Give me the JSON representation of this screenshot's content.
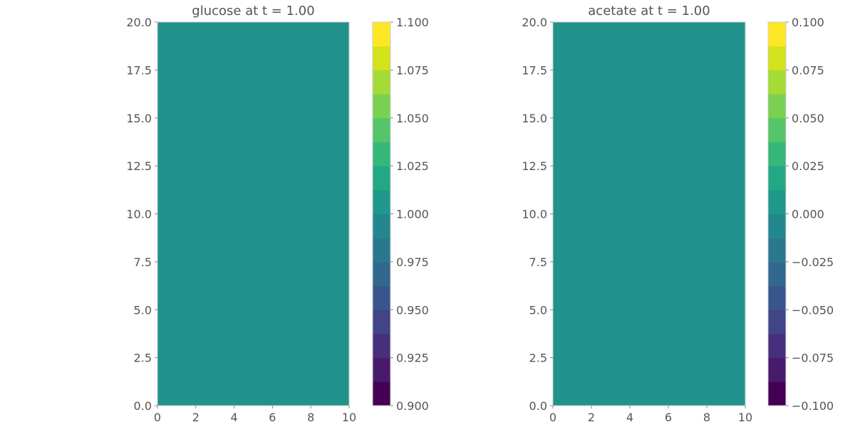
{
  "chart_data": [
    {
      "type": "heatmap",
      "title": "glucose at t = 1.00",
      "xlim": [
        0,
        10
      ],
      "ylim": [
        0,
        20
      ],
      "x_ticks": [
        "0",
        "2",
        "4",
        "6",
        "8",
        "10"
      ],
      "y_ticks": [
        "0.0",
        "2.5",
        "5.0",
        "7.5",
        "10.0",
        "12.5",
        "15.0",
        "17.5",
        "20.0"
      ],
      "field_value": 1.0,
      "field_color": "#21918c",
      "colorbar": {
        "range": [
          0.9,
          1.1
        ],
        "levels": 16,
        "colormap": "viridis",
        "ticks": [
          "0.900",
          "0.925",
          "0.950",
          "0.975",
          "1.000",
          "1.025",
          "1.050",
          "1.075",
          "1.100"
        ]
      }
    },
    {
      "type": "heatmap",
      "title": "acetate at t = 1.00",
      "xlim": [
        0,
        10
      ],
      "ylim": [
        0,
        20
      ],
      "x_ticks": [
        "0",
        "2",
        "4",
        "6",
        "8",
        "10"
      ],
      "y_ticks": [
        "0.0",
        "2.5",
        "5.0",
        "7.5",
        "10.0",
        "12.5",
        "15.0",
        "17.5",
        "20.0"
      ],
      "field_value": 0.0,
      "field_color": "#21918c",
      "colorbar": {
        "range": [
          -0.1,
          0.1
        ],
        "levels": 16,
        "colormap": "viridis",
        "ticks": [
          "−0.100",
          "−0.075",
          "−0.050",
          "−0.025",
          "0.000",
          "0.025",
          "0.050",
          "0.075",
          "0.100"
        ]
      }
    }
  ]
}
